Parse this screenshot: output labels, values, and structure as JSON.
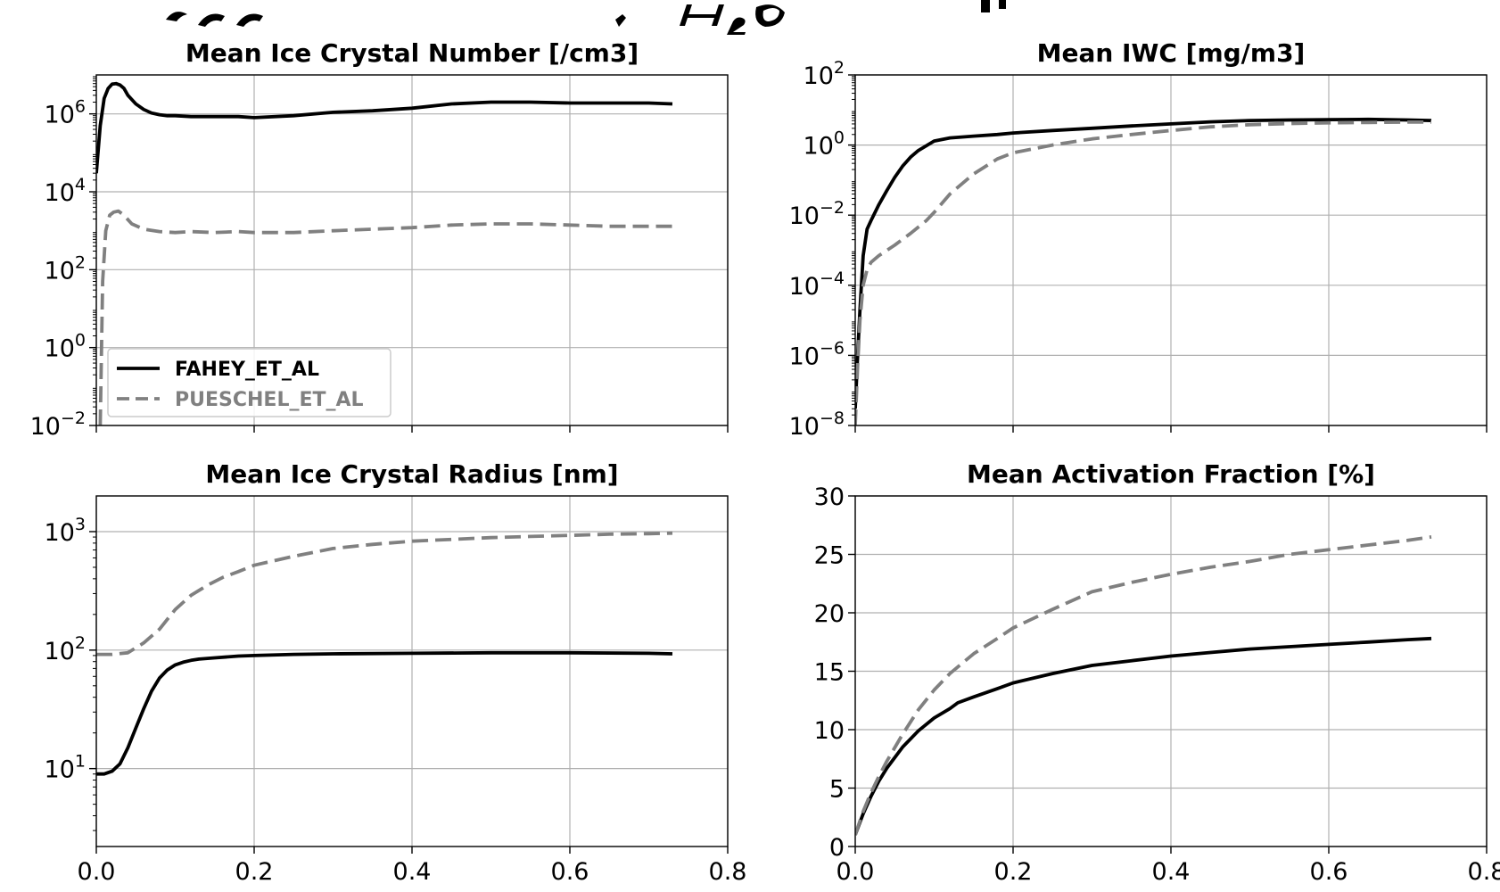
{
  "chart_data": [
    {
      "type": "line",
      "title": "Mean Ice Crystal Number [/cm3]",
      "xlabel": "",
      "ylabel": "",
      "xlim": [
        0,
        0.8
      ],
      "ylim": [
        0.01,
        10000000
      ],
      "yscale": "log",
      "grid": true,
      "xticks": [
        "0.0",
        "0.2",
        "0.4",
        "0.6",
        "0.8"
      ],
      "xticks_visible": false,
      "yticks": [
        {
          "base": "10",
          "exp": "6",
          "value": 1000000
        },
        {
          "base": "10",
          "exp": "4",
          "value": 10000
        },
        {
          "base": "10",
          "exp": "2",
          "value": 100
        },
        {
          "base": "10",
          "exp": "0",
          "value": 1
        },
        {
          "base": "10",
          "exp": "−2",
          "value": 0.01
        }
      ],
      "legend": {
        "position": "lower-left",
        "entries": [
          "FAHEY_ET_AL",
          "PUESCHEL_ET_AL"
        ]
      },
      "series": [
        {
          "name": "FAHEY_ET_AL",
          "color": "#000000",
          "style": "solid",
          "x": [
            0,
            0.005,
            0.01,
            0.015,
            0.02,
            0.025,
            0.03,
            0.035,
            0.04,
            0.05,
            0.06,
            0.07,
            0.08,
            0.09,
            0.1,
            0.12,
            0.15,
            0.18,
            0.2,
            0.25,
            0.3,
            0.35,
            0.4,
            0.45,
            0.5,
            0.55,
            0.6,
            0.65,
            0.7,
            0.73
          ],
          "y": [
            30000,
            500000,
            2500000,
            4500000,
            5800000,
            6000000,
            5500000,
            4500000,
            3000000,
            1800000,
            1300000,
            1050000,
            950000,
            900000,
            900000,
            850000,
            850000,
            850000,
            800000,
            900000,
            1100000,
            1200000,
            1400000,
            1800000,
            2000000,
            2000000,
            1900000,
            1900000,
            1900000,
            1800000
          ]
        },
        {
          "name": "PUESCHEL_ET_AL",
          "color": "#808080",
          "style": "dashed",
          "x": [
            0.005,
            0.008,
            0.012,
            0.017,
            0.022,
            0.028,
            0.035,
            0.045,
            0.06,
            0.08,
            0.1,
            0.12,
            0.15,
            0.18,
            0.2,
            0.25,
            0.3,
            0.35,
            0.4,
            0.45,
            0.5,
            0.55,
            0.6,
            0.65,
            0.7,
            0.73
          ],
          "y": [
            0.01,
            50,
            1000,
            2500,
            3000,
            3200,
            2500,
            1500,
            1100,
            950,
            900,
            950,
            900,
            950,
            900,
            900,
            1000,
            1100,
            1200,
            1400,
            1500,
            1500,
            1400,
            1300,
            1300,
            1300
          ]
        }
      ]
    },
    {
      "type": "line",
      "title": "Mean IWC [mg/m3]",
      "xlabel": "",
      "ylabel": "",
      "xlim": [
        0,
        0.8
      ],
      "ylim": [
        1e-08,
        100
      ],
      "yscale": "log",
      "grid": true,
      "xticks": [
        "0.0",
        "0.2",
        "0.4",
        "0.6",
        "0.8"
      ],
      "xticks_visible": false,
      "yticks": [
        {
          "base": "10",
          "exp": "2",
          "value": 100
        },
        {
          "base": "10",
          "exp": "0",
          "value": 1
        },
        {
          "base": "10",
          "exp": "−2",
          "value": 0.01
        },
        {
          "base": "10",
          "exp": "−4",
          "value": 0.0001
        },
        {
          "base": "10",
          "exp": "−6",
          "value": 1e-06
        },
        {
          "base": "10",
          "exp": "−8",
          "value": 1e-08
        }
      ],
      "series": [
        {
          "name": "FAHEY_ET_AL",
          "color": "#000000",
          "style": "solid",
          "x": [
            0,
            0.003,
            0.006,
            0.01,
            0.015,
            0.02,
            0.03,
            0.04,
            0.05,
            0.06,
            0.07,
            0.08,
            0.1,
            0.12,
            0.15,
            0.18,
            0.2,
            0.25,
            0.3,
            0.35,
            0.4,
            0.45,
            0.5,
            0.55,
            0.6,
            0.65,
            0.7,
            0.73
          ],
          "y": [
            3e-08,
            1e-06,
            2e-05,
            0.0007,
            0.004,
            0.007,
            0.02,
            0.05,
            0.12,
            0.25,
            0.45,
            0.7,
            1.3,
            1.6,
            1.8,
            2,
            2.2,
            2.6,
            3,
            3.5,
            4,
            4.6,
            5,
            5.2,
            5.3,
            5.4,
            5.2,
            5
          ]
        },
        {
          "name": "PUESCHEL_ET_AL",
          "color": "#808080",
          "style": "dashed",
          "x": [
            0,
            0.003,
            0.006,
            0.01,
            0.015,
            0.02,
            0.03,
            0.05,
            0.07,
            0.09,
            0.1,
            0.12,
            0.15,
            0.18,
            0.2,
            0.25,
            0.3,
            0.35,
            0.4,
            0.45,
            0.5,
            0.55,
            0.6,
            0.65,
            0.7,
            0.73
          ],
          "y": [
            1e-08,
            5e-07,
            1e-05,
            0.0001,
            0.00028,
            0.00045,
            0.0007,
            0.0014,
            0.003,
            0.007,
            0.012,
            0.04,
            0.15,
            0.4,
            0.6,
            1,
            1.5,
            2,
            2.6,
            3.3,
            3.8,
            4.1,
            4.3,
            4.4,
            4.5,
            4.5
          ]
        }
      ]
    },
    {
      "type": "line",
      "title": "Mean Ice Crystal Radius [nm]",
      "xlabel": "",
      "ylabel": "",
      "xlim": [
        0,
        0.8
      ],
      "ylim": [
        2.2,
        2000
      ],
      "yscale": "log",
      "grid": true,
      "xticks": [
        "0.0",
        "0.2",
        "0.4",
        "0.6",
        "0.8"
      ],
      "xticks_visible": true,
      "yticks": [
        {
          "base": "10",
          "exp": "3",
          "value": 1000
        },
        {
          "base": "10",
          "exp": "2",
          "value": 100
        },
        {
          "base": "10",
          "exp": "1",
          "value": 10
        }
      ],
      "series": [
        {
          "name": "FAHEY_ET_AL",
          "color": "#000000",
          "style": "solid",
          "x": [
            0,
            0.01,
            0.02,
            0.03,
            0.04,
            0.05,
            0.06,
            0.07,
            0.08,
            0.09,
            0.1,
            0.11,
            0.12,
            0.13,
            0.15,
            0.18,
            0.2,
            0.25,
            0.3,
            0.4,
            0.5,
            0.6,
            0.7,
            0.73
          ],
          "y": [
            9,
            9,
            9.5,
            11,
            15,
            22,
            32,
            45,
            58,
            68,
            75,
            79,
            82,
            84,
            86,
            89,
            90,
            92,
            93,
            94,
            95,
            95,
            94,
            93
          ]
        },
        {
          "name": "PUESCHEL_ET_AL",
          "color": "#808080",
          "style": "dashed",
          "x": [
            0,
            0.02,
            0.04,
            0.06,
            0.08,
            0.1,
            0.12,
            0.14,
            0.16,
            0.18,
            0.2,
            0.25,
            0.3,
            0.35,
            0.4,
            0.45,
            0.5,
            0.55,
            0.6,
            0.65,
            0.7,
            0.73
          ],
          "y": [
            92,
            92,
            95,
            115,
            150,
            220,
            290,
            350,
            410,
            460,
            520,
            620,
            720,
            780,
            830,
            860,
            890,
            910,
            930,
            950,
            960,
            970
          ]
        }
      ]
    },
    {
      "type": "line",
      "title": "Mean Activation Fraction [%]",
      "xlabel": "",
      "ylabel": "",
      "xlim": [
        0,
        0.8
      ],
      "ylim": [
        0,
        30
      ],
      "yscale": "linear",
      "grid": true,
      "xticks": [
        "0.0",
        "0.2",
        "0.4",
        "0.6",
        "0.8"
      ],
      "xticks_visible": true,
      "yticks": [
        {
          "label": "30",
          "value": 30
        },
        {
          "label": "25",
          "value": 25
        },
        {
          "label": "20",
          "value": 20
        },
        {
          "label": "15",
          "value": 15
        },
        {
          "label": "10",
          "value": 10
        },
        {
          "label": "5",
          "value": 5
        },
        {
          "label": "0",
          "value": 0
        }
      ],
      "series": [
        {
          "name": "FAHEY_ET_AL",
          "color": "#000000",
          "style": "solid",
          "x": [
            0,
            0.01,
            0.02,
            0.03,
            0.04,
            0.06,
            0.08,
            0.1,
            0.12,
            0.13,
            0.15,
            0.18,
            0.2,
            0.25,
            0.3,
            0.35,
            0.4,
            0.45,
            0.5,
            0.55,
            0.6,
            0.65,
            0.7,
            0.73
          ],
          "y": [
            1,
            2.8,
            4.3,
            5.6,
            6.7,
            8.5,
            9.9,
            11,
            11.8,
            12.3,
            12.8,
            13.5,
            14,
            14.8,
            15.5,
            15.9,
            16.3,
            16.6,
            16.9,
            17.1,
            17.3,
            17.5,
            17.7,
            17.8
          ]
        },
        {
          "name": "PUESCHEL_ET_AL",
          "color": "#808080",
          "style": "dashed",
          "x": [
            0,
            0.01,
            0.02,
            0.03,
            0.04,
            0.06,
            0.08,
            0.1,
            0.12,
            0.15,
            0.18,
            0.2,
            0.25,
            0.3,
            0.35,
            0.4,
            0.45,
            0.5,
            0.55,
            0.6,
            0.65,
            0.7,
            0.73
          ],
          "y": [
            1,
            3,
            4.6,
            6,
            7.3,
            9.6,
            11.7,
            13.4,
            14.8,
            16.5,
            17.8,
            18.7,
            20.3,
            21.8,
            22.6,
            23.3,
            23.9,
            24.4,
            25,
            25.4,
            25.8,
            26.2,
            26.5
          ]
        }
      ]
    }
  ]
}
